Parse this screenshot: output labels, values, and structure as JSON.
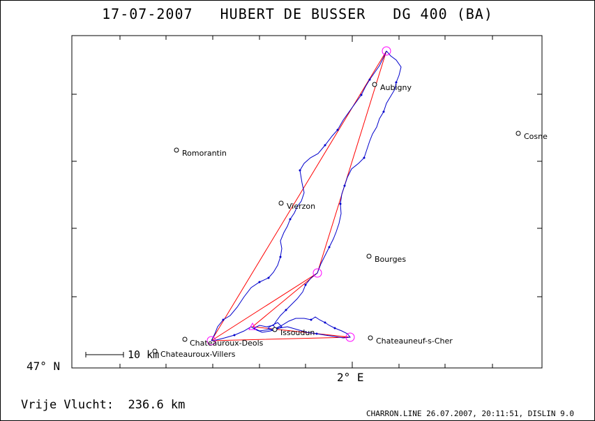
{
  "title": "17-07-2007   HUBERT DE BUSSER   DG 400 (BA)",
  "latitude_label": "47° N",
  "longitude_label": "2° E",
  "scale_label": "10 km",
  "distance_text": "Vrije Vlucht:  236.6 km",
  "footer_text": "CHARRON.LINE 26.07.2007, 20:11:51, DISLIN 9.0",
  "colors": {
    "track": "#0000cc",
    "task": "#ff0000",
    "turnpoint": "#ff00ff",
    "frame": "#000000"
  },
  "towns": [
    {
      "name": "Aubigny"
    },
    {
      "name": "Cosne"
    },
    {
      "name": "Romorantin"
    },
    {
      "name": "Vierzon"
    },
    {
      "name": "Bourges"
    },
    {
      "name": "Issoudun"
    },
    {
      "name": "Chateauroux-Deols"
    },
    {
      "name": "Chateauroux-Villers"
    },
    {
      "name": "Chateauneuf-s-Cher"
    }
  ]
}
